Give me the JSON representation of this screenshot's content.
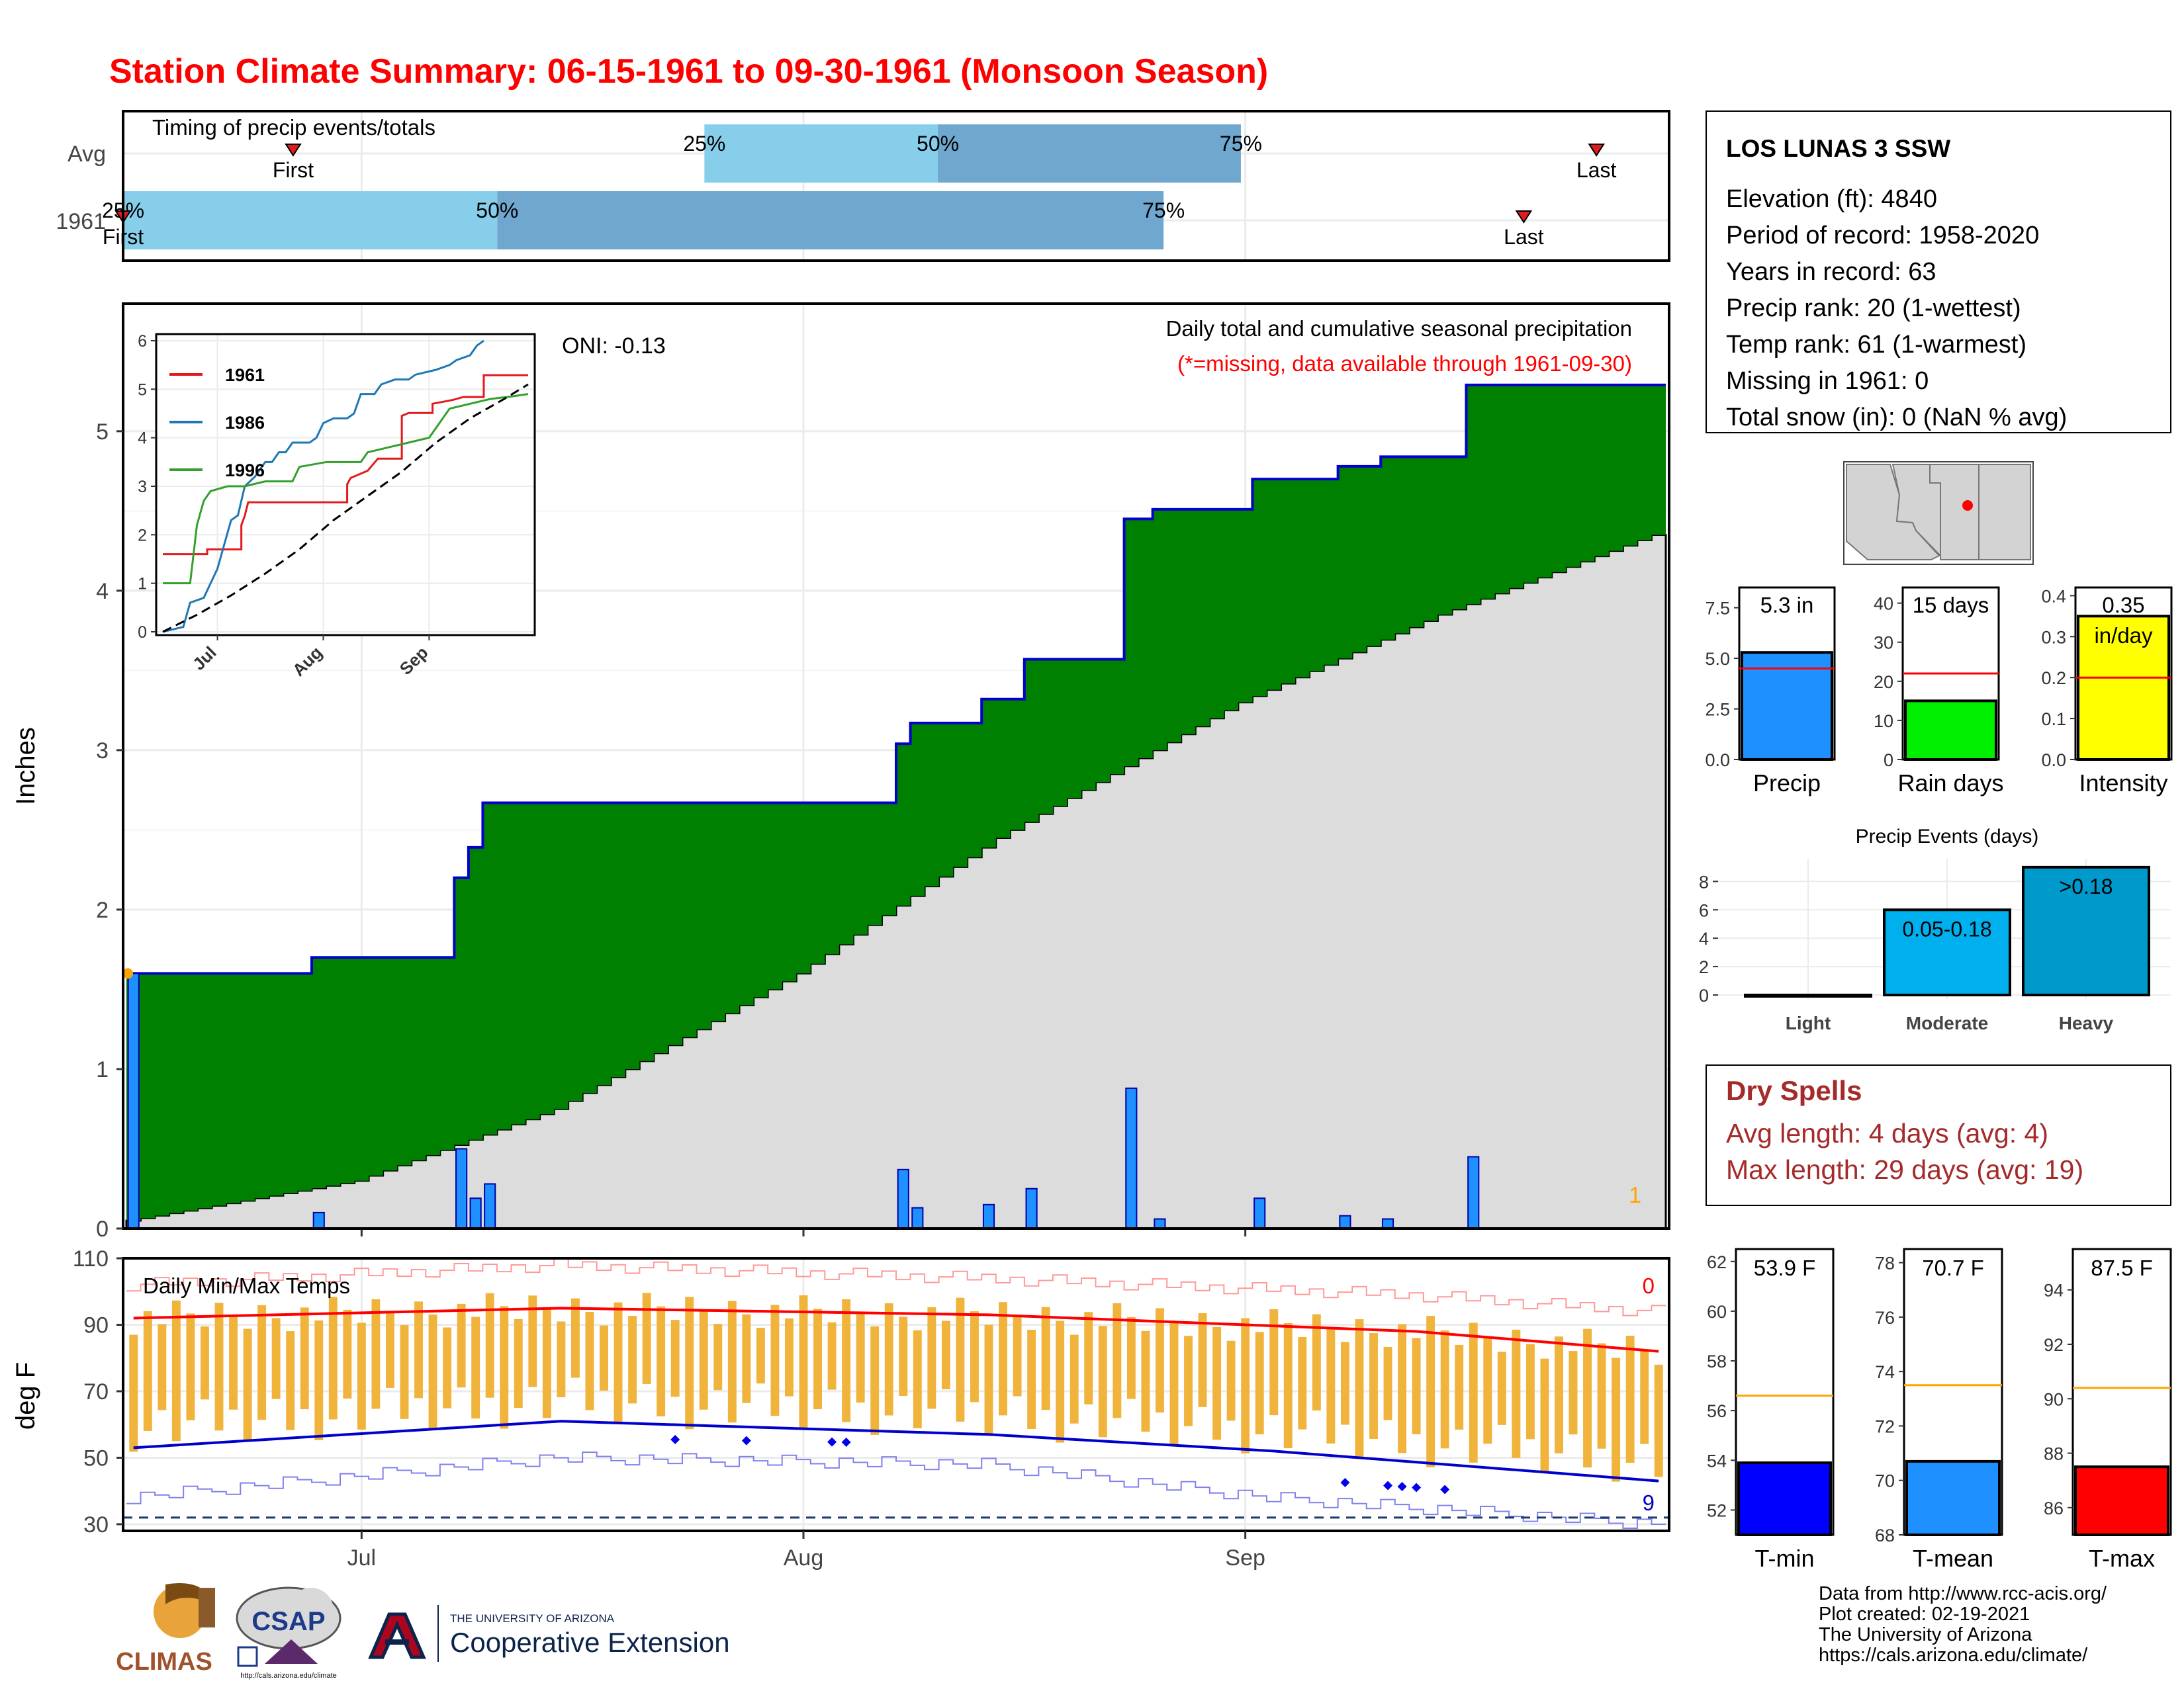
{
  "title": "Station Climate Summary: 06-15-1961 to 09-30-1961 (Monsoon Season)",
  "colors": {
    "title": "#ff0000",
    "cum_fill": "#008000",
    "cum_line": "#0000cc",
    "avg_fill": "#dcdcdc",
    "bar": "#1e90ff",
    "temp_bar": "#f0b43c",
    "tmax_avg": "#ff0000",
    "tmin_avg": "#0000cc",
    "dry_spell": "#a52a2a"
  },
  "timing": {
    "title": "Timing of precip events/totals",
    "rows": [
      "Avg",
      "1961"
    ],
    "avg": {
      "first": 0.11,
      "p25": 0.376,
      "p50": 0.527,
      "p75": 0.723,
      "last": 0.953,
      "first_label": "First",
      "last_label": "Last",
      "p25_label": "25%",
      "p50_label": "50%",
      "p75_label": "75%"
    },
    "year": {
      "first": 0.0,
      "p25": 0.0,
      "p50": 0.242,
      "p75": 0.673,
      "last": 0.906,
      "first_label": "First",
      "last_label": "Last",
      "p25_label": "25%",
      "p50_label": "50%",
      "p75_label": "75%"
    }
  },
  "info": {
    "station": "LOS LUNAS 3 SSW",
    "lines": [
      "Elevation (ft): 4840",
      "Period of record: 1958-2020",
      "Years in record: 63",
      "Precip rank: 20 (1-wettest)",
      "Temp rank: 61 (1-warmest)",
      "Missing in 1961: 0",
      "Total snow (in): 0 (NaN % avg)"
    ]
  },
  "main": {
    "title": "Daily total and cumulative seasonal precipitation",
    "note": "(*=missing, data available through 1961-09-30)",
    "oni": "ONI: -0.13",
    "ylabel": "Inches",
    "count": "1"
  },
  "inset": {
    "yticks": [
      "0",
      "1",
      "2",
      "3",
      "4",
      "5",
      "6"
    ],
    "xticks": [
      "Jul",
      "Aug",
      "Sep"
    ],
    "legend": [
      "1961",
      "1986",
      "1996"
    ]
  },
  "temp": {
    "title": "Daily Min/Max Temps",
    "ylabel": "deg F",
    "yticks": [
      "30",
      "50",
      "70",
      "90",
      "110"
    ],
    "count_top": "0",
    "count_bottom": "9"
  },
  "xticks": [
    "Jul",
    "Aug",
    "Sep"
  ],
  "season_bars": [
    {
      "label": "Precip",
      "value_label": "5.3 in",
      "ticks": [
        "0.0",
        "2.5",
        "5.0",
        "7.5"
      ],
      "color": "#1e90ff"
    },
    {
      "label": "Rain days",
      "value_label": "15 days",
      "ticks": [
        "0",
        "10",
        "20",
        "30",
        "40"
      ],
      "color": "#00ee00"
    },
    {
      "label": "Intensity",
      "value_label": "0.35",
      "unit": "in/day",
      "ticks": [
        "0.0",
        "0.1",
        "0.2",
        "0.3",
        "0.4"
      ],
      "color": "#ffff00"
    }
  ],
  "events": {
    "title": "Precip Events (days)",
    "yticks": [
      "0",
      "2",
      "4",
      "6",
      "8"
    ],
    "bars": [
      {
        "label": "Light",
        "range": ""
      },
      {
        "label": "Moderate",
        "range": "0.05-0.18"
      },
      {
        "label": "Heavy",
        "range": ">0.18"
      }
    ]
  },
  "dry": {
    "title": "Dry Spells",
    "avg": "Avg length: 4 days (avg: 4)",
    "max": "Max length: 29 days (avg: 19)"
  },
  "temp_bars": [
    {
      "label": "T-min",
      "value_label": "53.9 F",
      "ticks": [
        "52",
        "54",
        "56",
        "58",
        "60",
        "62"
      ],
      "color": "#0000ff"
    },
    {
      "label": "T-mean",
      "value_label": "70.7 F",
      "ticks": [
        "68",
        "70",
        "72",
        "74",
        "76",
        "78"
      ],
      "color": "#1e90ff"
    },
    {
      "label": "T-max",
      "value_label": "87.5 F",
      "ticks": [
        "86",
        "88",
        "90",
        "92",
        "94"
      ],
      "color": "#ff0000"
    }
  ],
  "footer": {
    "lines": [
      "Data from http://www.rcc-acis.org/",
      "Plot created: 02-19-2021",
      "The University of Arizona",
      "https://cals.arizona.edu/climate/"
    ],
    "climas": "CLIMAS",
    "csap": "CSAP",
    "csap_url": "http://cals.arizona.edu/climate",
    "ua_small": "THE UNIVERSITY OF ARIZONA",
    "ua_big": "Cooperative Extension"
  },
  "chart_data": [
    {
      "type": "area",
      "title": "Daily total and cumulative seasonal precipitation",
      "ylabel": "Inches",
      "xlabel": "",
      "ylim": [
        0,
        5.8
      ],
      "x_range": [
        "1961-06-15",
        "1961-09-30"
      ],
      "daily_precip": [
        {
          "x": "1961-06-15",
          "y": 1.6
        },
        {
          "x": "1961-06-28",
          "y": 0.1
        },
        {
          "x": "1961-07-08",
          "y": 0.5
        },
        {
          "x": "1961-07-09",
          "y": 0.19
        },
        {
          "x": "1961-07-10",
          "y": 0.28
        },
        {
          "x": "1961-08-08",
          "y": 0.37
        },
        {
          "x": "1961-08-09",
          "y": 0.13
        },
        {
          "x": "1961-08-14",
          "y": 0.15
        },
        {
          "x": "1961-08-17",
          "y": 0.25
        },
        {
          "x": "1961-08-24",
          "y": 0.88
        },
        {
          "x": "1961-08-26",
          "y": 0.06
        },
        {
          "x": "1961-09-02",
          "y": 0.19
        },
        {
          "x": "1961-09-08",
          "y": 0.08
        },
        {
          "x": "1961-09-11",
          "y": 0.06
        },
        {
          "x": "1961-09-17",
          "y": 0.45
        }
      ],
      "cumulative_1961": [
        {
          "x": "1961-06-15",
          "y": 1.6
        },
        {
          "x": "1961-06-28",
          "y": 1.7
        },
        {
          "x": "1961-07-08",
          "y": 2.2
        },
        {
          "x": "1961-07-09",
          "y": 2.39
        },
        {
          "x": "1961-07-10",
          "y": 2.67
        },
        {
          "x": "1961-08-08",
          "y": 3.04
        },
        {
          "x": "1961-08-09",
          "y": 3.17
        },
        {
          "x": "1961-08-14",
          "y": 3.32
        },
        {
          "x": "1961-08-17",
          "y": 3.57
        },
        {
          "x": "1961-08-24",
          "y": 4.45
        },
        {
          "x": "1961-08-26",
          "y": 4.51
        },
        {
          "x": "1961-09-02",
          "y": 4.7
        },
        {
          "x": "1961-09-08",
          "y": 4.78
        },
        {
          "x": "1961-09-11",
          "y": 4.84
        },
        {
          "x": "1961-09-17",
          "y": 5.29
        },
        {
          "x": "1961-09-30",
          "y": 5.29
        }
      ],
      "cumulative_average": [
        {
          "x": "1961-06-15",
          "y": 0.05
        },
        {
          "x": "1961-07-01",
          "y": 0.3
        },
        {
          "x": "1961-07-15",
          "y": 0.75
        },
        {
          "x": "1961-08-01",
          "y": 1.6
        },
        {
          "x": "1961-08-15",
          "y": 2.45
        },
        {
          "x": "1961-09-01",
          "y": 3.3
        },
        {
          "x": "1961-09-15",
          "y": 3.85
        },
        {
          "x": "1961-09-30",
          "y": 4.35
        }
      ]
    },
    {
      "type": "line",
      "title": "",
      "ylim": [
        0,
        6
      ],
      "x_range": [
        "1961-06-15",
        "1961-09-30"
      ],
      "series": [
        {
          "name": "1961",
          "values": [
            [
              0,
              1.6
            ],
            [
              13,
              1.6
            ],
            [
              13,
              1.7
            ],
            [
              23,
              1.7
            ],
            [
              23,
              2.2
            ],
            [
              24,
              2.39
            ],
            [
              25,
              2.67
            ],
            [
              54,
              2.67
            ],
            [
              54,
              3.04
            ],
            [
              55,
              3.17
            ],
            [
              60,
              3.32
            ],
            [
              63,
              3.57
            ],
            [
              70,
              3.57
            ],
            [
              70,
              4.45
            ],
            [
              72,
              4.51
            ],
            [
              79,
              4.51
            ],
            [
              79,
              4.7
            ],
            [
              85,
              4.78
            ],
            [
              88,
              4.84
            ],
            [
              94,
              4.84
            ],
            [
              94,
              5.29
            ],
            [
              107,
              5.29
            ]
          ]
        },
        {
          "name": "1986",
          "values": [
            [
              0,
              0
            ],
            [
              6,
              0.1
            ],
            [
              8,
              0.6
            ],
            [
              10,
              0.65
            ],
            [
              12,
              0.7
            ],
            [
              14,
              1.0
            ],
            [
              16,
              1.3
            ],
            [
              18,
              1.8
            ],
            [
              20,
              2.3
            ],
            [
              22,
              2.4
            ],
            [
              24,
              3.0
            ],
            [
              27,
              3.2
            ],
            [
              30,
              3.5
            ],
            [
              32,
              3.5
            ],
            [
              34,
              3.7
            ],
            [
              36,
              3.7
            ],
            [
              38,
              3.9
            ],
            [
              43,
              3.9
            ],
            [
              45,
              4.0
            ],
            [
              47,
              4.3
            ],
            [
              50,
              4.4
            ],
            [
              54,
              4.4
            ],
            [
              56,
              4.5
            ],
            [
              58,
              4.9
            ],
            [
              62,
              4.9
            ],
            [
              64,
              5.1
            ],
            [
              68,
              5.2
            ],
            [
              72,
              5.2
            ],
            [
              74,
              5.3
            ],
            [
              80,
              5.4
            ],
            [
              84,
              5.5
            ],
            [
              86,
              5.6
            ],
            [
              90,
              5.7
            ],
            [
              92,
              5.9
            ],
            [
              94,
              6.0
            ]
          ]
        },
        {
          "name": "1996",
          "values": [
            [
              0,
              1.0
            ],
            [
              8,
              1.0
            ],
            [
              10,
              2.2
            ],
            [
              12,
              2.7
            ],
            [
              14,
              2.9
            ],
            [
              19,
              3.0
            ],
            [
              24,
              3.0
            ],
            [
              30,
              3.1
            ],
            [
              38,
              3.1
            ],
            [
              40,
              3.4
            ],
            [
              48,
              3.5
            ],
            [
              58,
              3.5
            ],
            [
              60,
              3.7
            ],
            [
              66,
              3.8
            ],
            [
              72,
              3.9
            ],
            [
              78,
              4.0
            ],
            [
              84,
              4.6
            ],
            [
              90,
              4.7
            ],
            [
              96,
              4.8
            ],
            [
              102,
              4.85
            ],
            [
              107,
              4.9
            ]
          ]
        },
        {
          "name": "",
          "values": [
            [
              0,
              0
            ],
            [
              10,
              0.35
            ],
            [
              20,
              0.75
            ],
            [
              30,
              1.2
            ],
            [
              40,
              1.7
            ],
            [
              50,
              2.3
            ],
            [
              60,
              2.8
            ],
            [
              70,
              3.3
            ],
            [
              80,
              3.9
            ],
            [
              90,
              4.4
            ],
            [
              100,
              4.8
            ],
            [
              107,
              5.1
            ]
          ]
        }
      ]
    },
    {
      "type": "bar",
      "title": "Daily Min/Max Temps",
      "ylabel": "deg F",
      "ylim": [
        28,
        110
      ],
      "x_range": [
        "1961-06-15",
        "1961-09-30"
      ],
      "avg_max": [
        [
          0,
          92
        ],
        [
          30,
          95
        ],
        [
          60,
          93
        ],
        [
          90,
          88
        ],
        [
          107,
          82
        ]
      ],
      "avg_min": [
        [
          0,
          53
        ],
        [
          30,
          61
        ],
        [
          60,
          57
        ],
        [
          80,
          52
        ],
        [
          107,
          43
        ]
      ],
      "record_max": [
        [
          0,
          102
        ],
        [
          30,
          108
        ],
        [
          60,
          104
        ],
        [
          90,
          99
        ],
        [
          107,
          94
        ]
      ],
      "record_min": [
        [
          0,
          38
        ],
        [
          30,
          50
        ],
        [
          60,
          48
        ],
        [
          80,
          38
        ],
        [
          107,
          30
        ]
      ],
      "extreme_low_line": 32
    },
    {
      "type": "bar",
      "title": "",
      "categories": [
        "Precip",
        "Rain days",
        "Intensity"
      ],
      "values": [
        5.29,
        15,
        0.35
      ],
      "averages": [
        4.5,
        22,
        0.2
      ],
      "ylims": [
        [
          0,
          8.5
        ],
        [
          0,
          44
        ],
        [
          0,
          0.42
        ]
      ]
    },
    {
      "type": "bar",
      "title": "Precip Events (days)",
      "categories": [
        "Light",
        "Moderate",
        "Heavy"
      ],
      "values": [
        0,
        6,
        9
      ],
      "ylim": [
        0,
        9.6
      ]
    },
    {
      "type": "bar",
      "title": "",
      "categories": [
        "T-min",
        "T-mean",
        "T-max"
      ],
      "values": [
        53.9,
        70.7,
        87.5
      ],
      "averages": [
        56.6,
        73.5,
        90.4
      ],
      "ylims": [
        [
          51,
          62.5
        ],
        [
          68,
          78.5
        ],
        [
          85,
          95.5
        ]
      ]
    }
  ]
}
